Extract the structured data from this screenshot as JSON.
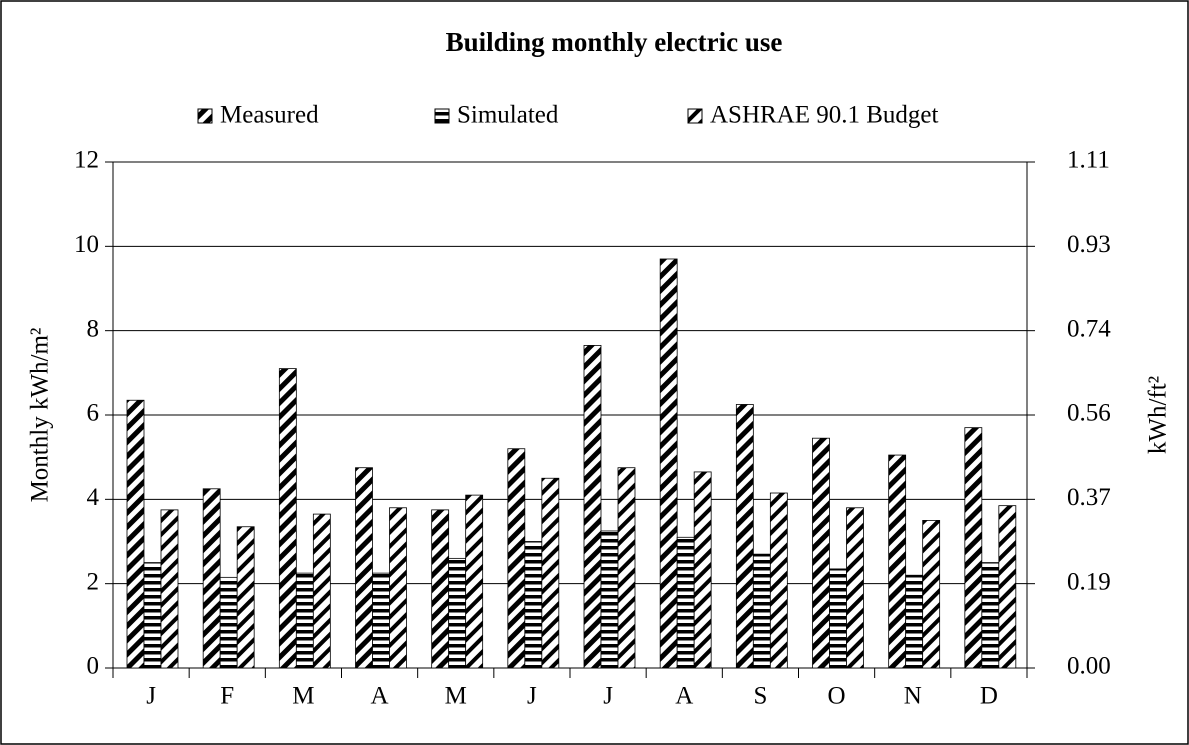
{
  "chart_data": {
    "type": "bar",
    "title": "Building monthly electric use",
    "y_label": "Monthly kWh/m²",
    "y2_label": "kWh/ft²",
    "categories": [
      "J",
      "F",
      "M",
      "A",
      "M",
      "J",
      "J",
      "A",
      "S",
      "O",
      "N",
      "D"
    ],
    "series": [
      {
        "name": "Measured",
        "color": "#000000",
        "values": [
          6.35,
          4.25,
          7.1,
          4.75,
          3.75,
          5.2,
          7.65,
          9.7,
          6.25,
          5.45,
          5.05,
          5.7
        ]
      },
      {
        "name": "Simulated",
        "color": "#000000",
        "values": [
          2.5,
          2.15,
          2.25,
          2.25,
          2.6,
          3.0,
          3.25,
          3.1,
          2.7,
          2.35,
          2.2,
          2.5
        ]
      },
      {
        "name": "ASHRAE 90.1 Budget",
        "color": "#000000",
        "values": [
          3.75,
          3.35,
          3.65,
          3.8,
          4.1,
          4.5,
          4.75,
          4.65,
          4.15,
          3.8,
          3.5,
          3.85
        ]
      }
    ],
    "ylim": [
      0,
      12
    ],
    "yticks": [
      0,
      2,
      4,
      6,
      8,
      10,
      12
    ],
    "y2lim": [
      0,
      1.1148
    ],
    "y2ticks": [
      {
        "value": 0,
        "label": "0.00"
      },
      {
        "value": 0.1858,
        "label": "0.19"
      },
      {
        "value": 0.3716,
        "label": "0.37"
      },
      {
        "value": 0.5574,
        "label": "0.56"
      },
      {
        "value": 0.7432,
        "label": "0.74"
      },
      {
        "value": 0.929,
        "label": "0.93"
      },
      {
        "value": 1.1148,
        "label": "1.11"
      }
    ],
    "grid": true,
    "legend": "top"
  }
}
